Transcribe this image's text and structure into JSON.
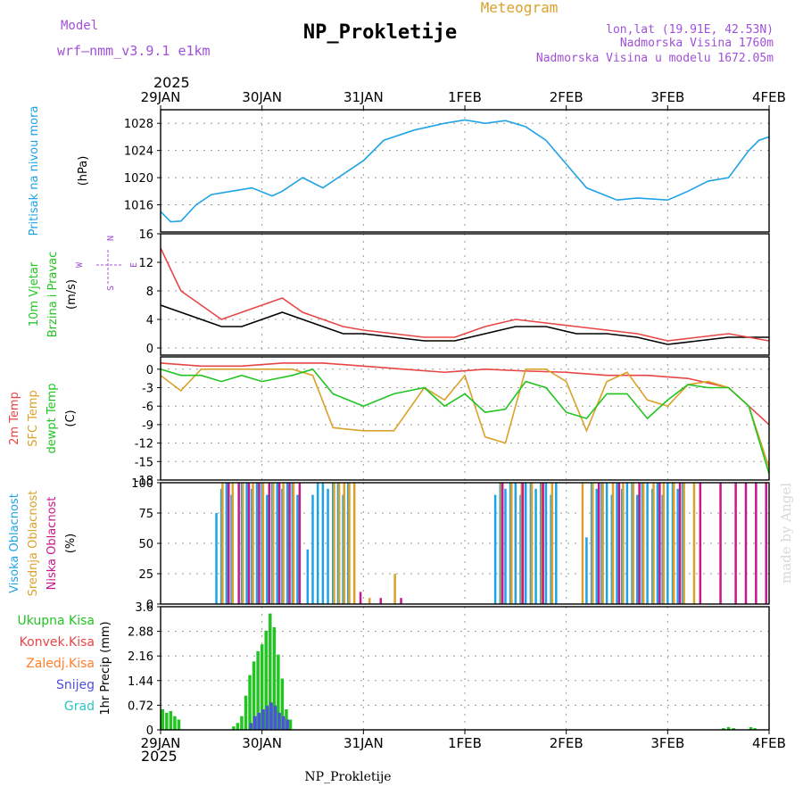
{
  "header": {
    "model_label": "Model",
    "model_name": "wrf—nmm_v3.9.1  e1km",
    "category": "Meteogram",
    "title": "NP_Prokletije",
    "location": "lon,lat (19.91E, 42.53N)",
    "elevation": "Nadmorska Visina 1760m",
    "model_elevation": "Nadmorska Visina u modelu 1672.05m",
    "footer": "NP_Prokletije",
    "watermark": "made by Angel"
  },
  "colors": {
    "pressure": "#1fa3e6",
    "temp2m": "#e84545",
    "sfc": "#d9a22a",
    "dewpt": "#22c422",
    "high_cloud": "#1fa3e6",
    "mid_cloud": "#d9a22a",
    "low_cloud": "#c8188c",
    "rain_total": "#22c422",
    "rain_conv": "#e84545",
    "rain_frz": "#ff7f2a",
    "snow": "#4f4fe0",
    "hail": "#2ec4c4",
    "purple": "#a050d8"
  },
  "chart_data": {
    "x_labels": [
      "29JAN",
      "30JAN",
      "31JAN",
      "1FEB",
      "2FEB",
      "3FEB",
      "4FEB"
    ],
    "year_label": "2025",
    "panels": [
      {
        "id": "pressure",
        "type": "line",
        "ylabel": [
          "Pritisak na nivou mora",
          "(hPa)"
        ],
        "yticks": [
          1016,
          1020,
          1024,
          1028
        ],
        "ylim": [
          1012,
          1030
        ],
        "series": [
          {
            "x": [
              0,
              0.1,
              0.2,
              0.35,
              0.5,
              0.7,
              0.9,
              1.1,
              1.2,
              1.4,
              1.6,
              1.8,
              2.0,
              2.2,
              2.5,
              2.8,
              3.0,
              3.2,
              3.4,
              3.6,
              3.8,
              4.0,
              4.2,
              4.5,
              4.7,
              5.0,
              5.2,
              5.4,
              5.6,
              5.8,
              5.9,
              6.0
            ],
            "y": [
              1015,
              1013.5,
              1013.6,
              1016,
              1017.5,
              1018,
              1018.5,
              1017.3,
              1018,
              1020,
              1018.5,
              1020.5,
              1022.5,
              1025.5,
              1027,
              1028,
              1028.5,
              1028,
              1028.4,
              1027.5,
              1025.5,
              1022,
              1018.5,
              1016.7,
              1017,
              1016.7,
              1018,
              1019.5,
              1020,
              1024,
              1025.5,
              1026
            ]
          }
        ]
      },
      {
        "id": "wind",
        "type": "line",
        "ylabel": [
          "10m Vjetar",
          "Brzina i Pravac",
          "(m/s)"
        ],
        "yticks": [
          0,
          4,
          8,
          12,
          16
        ],
        "ylim": [
          -1,
          16
        ],
        "compass": [
          "N",
          "E",
          "S",
          "W"
        ],
        "series": [
          {
            "name": "speed",
            "x": [
              0,
              0.2,
              0.4,
              0.6,
              0.8,
              1.0,
              1.2,
              1.4,
              1.6,
              1.8,
              2.0,
              2.3,
              2.6,
              2.9,
              3.2,
              3.5,
              3.8,
              4.1,
              4.4,
              4.7,
              5.0,
              5.3,
              5.6,
              6.0
            ],
            "y": [
              6,
              5,
              4,
              3,
              3,
              4,
              5,
              4,
              3,
              2,
              2,
              1.5,
              1,
              1,
              2,
              3,
              3,
              2,
              2,
              1.5,
              0.5,
              1,
              1.5,
              1.5
            ]
          },
          {
            "name": "gust",
            "x": [
              0,
              0.2,
              0.4,
              0.6,
              0.8,
              1.0,
              1.2,
              1.4,
              1.6,
              1.8,
              2.0,
              2.3,
              2.6,
              2.9,
              3.2,
              3.5,
              3.8,
              4.1,
              4.4,
              4.7,
              5.0,
              5.3,
              5.6,
              6.0
            ],
            "y": [
              14,
              8,
              6,
              4,
              5,
              6,
              7,
              5,
              4,
              3,
              2.5,
              2,
              1.5,
              1.5,
              3,
              4,
              3.5,
              3,
              2.5,
              2,
              1,
              1.5,
              2,
              1
            ]
          }
        ]
      },
      {
        "id": "temperature",
        "type": "line",
        "ylabel": [
          "2m Temp",
          "SFC Temp",
          "dewpt Temp",
          "(C)"
        ],
        "yticks": [
          -18,
          -15,
          -12,
          -9,
          -6,
          -3,
          0
        ],
        "ylim": [
          -18,
          2
        ],
        "series": [
          {
            "name": "2m Temp",
            "x": [
              0,
              0.4,
              0.8,
              1.2,
              1.6,
              2.0,
              2.4,
              2.8,
              3.2,
              3.6,
              4.0,
              4.4,
              4.8,
              5.2,
              5.6,
              5.8,
              6.0
            ],
            "y": [
              1,
              0.5,
              0.5,
              1,
              1,
              0.5,
              0,
              -0.5,
              0,
              -0.3,
              -0.5,
              -1,
              -1,
              -1.5,
              -3,
              -6,
              -9
            ]
          },
          {
            "name": "SFC Temp",
            "x": [
              0,
              0.2,
              0.4,
              0.6,
              0.8,
              1.0,
              1.3,
              1.5,
              1.7,
              2.0,
              2.3,
              2.6,
              2.8,
              3.0,
              3.2,
              3.4,
              3.6,
              3.8,
              4.0,
              4.2,
              4.4,
              4.6,
              4.8,
              5.0,
              5.2,
              5.4,
              5.6,
              5.8,
              6.0
            ],
            "y": [
              -1,
              -3.5,
              0,
              0,
              0,
              0,
              0,
              -1,
              -9.5,
              -10,
              -10,
              -3,
              -5,
              -1,
              -11,
              -12,
              0,
              0,
              -2,
              -10,
              -2,
              -0.5,
              -5,
              -6,
              -2.5,
              -2,
              -3,
              -6,
              -16
            ]
          },
          {
            "name": "dewpt Temp",
            "x": [
              0,
              0.2,
              0.4,
              0.6,
              0.8,
              1.0,
              1.3,
              1.5,
              1.7,
              2.0,
              2.3,
              2.6,
              2.8,
              3.0,
              3.2,
              3.4,
              3.6,
              3.8,
              4.0,
              4.2,
              4.4,
              4.6,
              4.8,
              5.0,
              5.2,
              5.4,
              5.6,
              5.8,
              6.0
            ],
            "y": [
              0,
              -1,
              -1,
              -2,
              -1,
              -2,
              -1,
              0,
              -4,
              -6,
              -4,
              -3,
              -6,
              -4,
              -7,
              -6.5,
              -2,
              -3,
              -7,
              -8,
              -4,
              -4,
              -8,
              -5,
              -2.5,
              -3,
              -3,
              -6,
              -17
            ]
          }
        ]
      },
      {
        "id": "clouds",
        "type": "bar",
        "ylabel": [
          "Visoka Oblacnost",
          "Srednja Oblacnost",
          "Niska Oblacnost",
          "(%)"
        ],
        "yticks": [
          0,
          25,
          50,
          75,
          100
        ],
        "ylim": [
          0,
          100
        ],
        "series": [
          {
            "name": "Visoka Oblacnost",
            "x": [
              0.55,
              0.6,
              0.65,
              0.7,
              0.8,
              0.85,
              0.9,
              0.95,
              1.0,
              1.05,
              1.1,
              1.15,
              1.2,
              1.25,
              1.3,
              1.35,
              1.45,
              1.5,
              1.55,
              1.6,
              1.65,
              1.7,
              1.75,
              1.8,
              1.85,
              3.3,
              3.35,
              3.4,
              3.45,
              3.5,
              3.55,
              3.6,
              3.65,
              3.7,
              3.75,
              3.8,
              3.85,
              3.9,
              4.2,
              4.25,
              4.3,
              4.35,
              4.4,
              4.45,
              4.5,
              4.55,
              4.6,
              4.65,
              4.7,
              4.75,
              4.8,
              4.85,
              4.9,
              4.95,
              5.0,
              5.05,
              5.1,
              5.15
            ],
            "y": [
              75,
              95,
              100,
              90,
              100,
              100,
              95,
              100,
              100,
              90,
              100,
              100,
              95,
              100,
              100,
              90,
              45,
              90,
              100,
              100,
              95,
              100,
              100,
              90,
              100,
              90,
              100,
              95,
              100,
              100,
              90,
              100,
              100,
              95,
              100,
              100,
              90,
              100,
              55,
              100,
              95,
              100,
              100,
              90,
              100,
              95,
              100,
              100,
              90,
              100,
              100,
              95,
              100,
              90,
              100,
              100,
              95,
              100
            ]
          },
          {
            "name": "Srednja Oblacnost",
            "x": [
              0.6,
              0.7,
              0.8,
              0.9,
              1.0,
              1.1,
              1.2,
              1.3,
              1.7,
              1.75,
              1.8,
              1.85,
              1.9,
              2.05,
              2.3,
              3.35,
              3.45,
              3.55,
              3.65,
              3.75,
              3.85,
              4.15,
              4.25,
              4.35,
              4.45,
              4.55,
              4.65,
              4.75,
              4.85,
              4.95,
              5.05,
              5.15,
              5.25
            ],
            "y": [
              100,
              100,
              100,
              100,
              100,
              100,
              100,
              100,
              100,
              100,
              100,
              100,
              100,
              5,
              25,
              100,
              100,
              100,
              100,
              100,
              100,
              100,
              100,
              100,
              100,
              100,
              100,
              100,
              100,
              100,
              100,
              100,
              100
            ]
          },
          {
            "name": "Niska Oblacnost",
            "x": [
              0.65,
              0.75,
              0.85,
              0.95,
              1.05,
              1.15,
              1.25,
              1.35,
              1.95,
              2.15,
              2.35,
              3.35,
              3.55,
              3.75,
              4.3,
              4.5,
              4.7,
              4.9,
              5.1,
              5.3,
              5.5,
              5.65,
              5.75,
              5.85,
              5.95
            ],
            "y": [
              100,
              100,
              100,
              100,
              100,
              100,
              100,
              100,
              10,
              5,
              5,
              100,
              100,
              100,
              100,
              100,
              100,
              100,
              100,
              100,
              100,
              100,
              100,
              100,
              100
            ]
          }
        ]
      },
      {
        "id": "precip",
        "type": "bar",
        "ylabel": [
          "1hr Precip (mm)"
        ],
        "yticks": [
          0,
          0.72,
          1.44,
          2.16,
          2.88,
          3.6
        ],
        "ylim": [
          0,
          3.6
        ],
        "legend": [
          "Ukupna Kisa",
          "Konvek.Kisa",
          "Zaledj.Kisa",
          "Snijeg",
          "Grad"
        ],
        "series": [
          {
            "name": "Ukupna Kisa",
            "x": [
              0.02,
              0.06,
              0.1,
              0.14,
              0.18,
              0.72,
              0.76,
              0.8,
              0.84,
              0.88,
              0.92,
              0.96,
              1.0,
              1.04,
              1.08,
              1.12,
              1.16,
              1.2,
              1.24,
              1.28,
              5.55,
              5.6,
              5.65,
              5.82,
              5.86
            ],
            "y": [
              0.6,
              0.5,
              0.55,
              0.4,
              0.3,
              0.1,
              0.2,
              0.4,
              1.0,
              1.6,
              2.0,
              2.3,
              2.5,
              2.9,
              3.4,
              3.0,
              2.2,
              1.5,
              0.6,
              0.3,
              0.05,
              0.08,
              0.05,
              0.08,
              0.05
            ]
          },
          {
            "name": "Snijeg",
            "x": [
              0.88,
              0.92,
              0.96,
              1.0,
              1.04,
              1.08,
              1.12,
              1.16,
              1.2,
              1.24
            ],
            "y": [
              0.2,
              0.4,
              0.5,
              0.6,
              0.7,
              0.8,
              0.7,
              0.5,
              0.4,
              0.3
            ]
          }
        ]
      }
    ]
  }
}
